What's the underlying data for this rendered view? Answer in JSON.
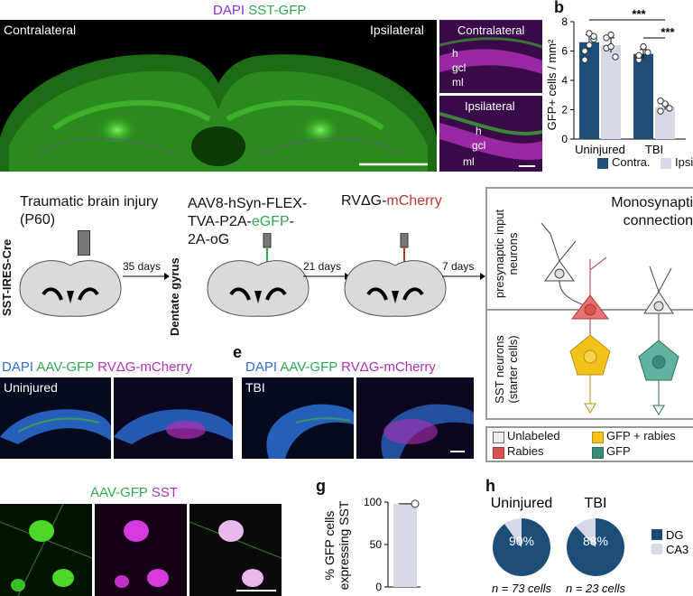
{
  "colors": {
    "dapi": "#8b2fc9",
    "gfp": "#2fa84f",
    "mcherry": "#c0392b",
    "contra": "#1d4e7a",
    "ipsi": "#d6d8e6",
    "green_tissue": "#3dbb2d",
    "magenta_tissue": "#b12fb8",
    "blue_tissue": "#2d6fd6",
    "yellow_cell": "#f2c21b",
    "teal_cell": "#3a8c7a",
    "red_cell": "#d9534f"
  },
  "panel_a": {
    "legend_dapi": "DAPI",
    "legend_sst": "SST-GFP",
    "label_contra": "Contralateral",
    "label_ipsi": "Ipsilateral",
    "inset_top_title": "Contralateral",
    "inset_bottom_title": "Ipsilateral",
    "layer_h": "h",
    "layer_gcl": "gcl",
    "layer_ml": "ml"
  },
  "panel_b": {
    "letter": "b",
    "ylabel": "GFP+ cells / mm²",
    "sig1": "***",
    "sig2": "***",
    "legend_contra": "Contra.",
    "legend_ipsi": "Ipsi"
  },
  "chart_data": [
    {
      "type": "bar",
      "categories": [
        "Uninjured",
        "TBI"
      ],
      "series": [
        {
          "name": "Contra.",
          "values": [
            6.6,
            5.8
          ],
          "errors": [
            0.5,
            0.3
          ]
        },
        {
          "name": "Ipsi",
          "values": [
            6.4,
            2.2
          ],
          "errors": [
            0.5,
            0.2
          ]
        }
      ],
      "ylabel": "GFP+ cells / mm²",
      "ylim": [
        0,
        8
      ],
      "yticks": [
        0,
        2,
        4,
        6,
        8
      ],
      "points": [
        [
          [
            6.0,
            7.2,
            6.8,
            5.4,
            6.4,
            7.0
          ],
          [
            6.2,
            7.1,
            5.6,
            6.9,
            6.3
          ]
        ],
        [
          [
            5.4,
            6.3,
            5.9,
            5.7
          ],
          [
            1.9,
            2.4,
            2.1,
            2.6
          ]
        ]
      ],
      "annotations": [
        "***",
        "***"
      ]
    },
    {
      "type": "bar",
      "categories": [
        ""
      ],
      "values": [
        98
      ],
      "ylabel": "% GFP cells expressing SST",
      "ylim": [
        0,
        100
      ],
      "yticks": [
        0,
        50,
        100
      ]
    },
    {
      "type": "pie",
      "title": "Uninjured",
      "labels": [
        "DG",
        "CA3"
      ],
      "values": [
        90,
        10
      ],
      "center_label": "90%",
      "footnote": "n = 73 cells"
    },
    {
      "type": "pie",
      "title": "TBI",
      "labels": [
        "DG",
        "CA3"
      ],
      "values": [
        88,
        12
      ],
      "center_label": "88%",
      "footnote": "n = 23 cells"
    }
  ],
  "panel_c": {
    "mouse_line": "SST-IRES-Cre",
    "step1": "Traumatic brain injury (P60)",
    "arrow1": "35 days",
    "step2_line1": "AAV8-hSyn-FLEX-",
    "step2_line2a": "TVA-P2A-",
    "step2_line2b": "eGFP",
    "step2_line2c": "-",
    "step2_line3": "2A-oG",
    "region": "Dentate gyrus",
    "arrow2": "21 days",
    "step3a": "RVΔG-",
    "step3b": "mCherry",
    "arrow3": "7 days"
  },
  "panel_schematic": {
    "title": "Monosynaptic connections",
    "presynaptic": "presynaptic input neurons",
    "starter": "SST neurons (starter cells)",
    "legend_unlabeled": "Unlabeled",
    "legend_rabies": "Rabies",
    "legend_gfp_rabies": "GFP + rabies",
    "legend_gfp": "GFP"
  },
  "panel_d": {
    "legend_dapi": "DAPI",
    "legend_aav": "AAV-GFP",
    "legend_rv": "RVΔG-mCherry",
    "condition": "Uninjured"
  },
  "panel_e": {
    "letter": "e",
    "legend_dapi": "DAPI",
    "legend_aav": "AAV-GFP",
    "legend_rv": "RVΔG-mCherry",
    "condition": "TBI"
  },
  "panel_f": {
    "legend_aav": "AAV-GFP",
    "legend_sst": "SST"
  },
  "panel_g": {
    "letter": "g",
    "ylabel": "% GFP cells expressing SST"
  },
  "panel_h": {
    "letter": "h",
    "legend_dg": "DG",
    "legend_ca3": "CA3"
  }
}
